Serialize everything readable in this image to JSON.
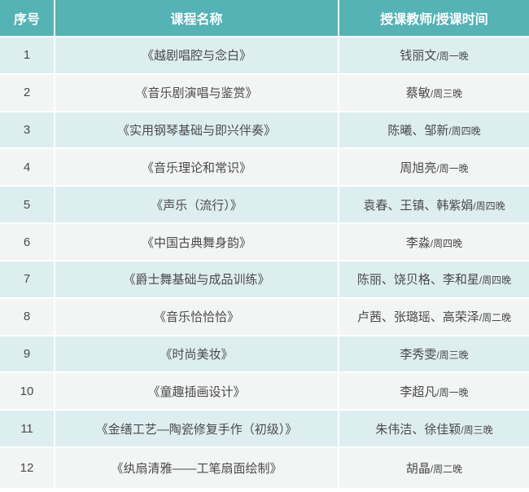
{
  "table": {
    "headers": [
      "序号",
      "课程名称",
      "授课教师/授课时间"
    ],
    "rows": [
      {
        "no": "1",
        "course": "《越剧唱腔与念白》",
        "teachers": "钱丽文",
        "time": "周一晚"
      },
      {
        "no": "2",
        "course": "《音乐剧演唱与鉴赏》",
        "teachers": "蔡敏",
        "time": "周三晚"
      },
      {
        "no": "3",
        "course": "《实用钢琴基础与即兴伴奏》",
        "teachers": "陈曦、邹新",
        "time": "周四晚"
      },
      {
        "no": "4",
        "course": "《音乐理论和常识》",
        "teachers": "周旭亮",
        "time": "周一晚"
      },
      {
        "no": "5",
        "course": "《声乐（流行）》",
        "teachers": "袁春、王镇、韩紫娟",
        "time": "周四晚"
      },
      {
        "no": "6",
        "course": "《中国古典舞身韵》",
        "teachers": "李淼",
        "time": "周四晚"
      },
      {
        "no": "7",
        "course": "《爵士舞基础与成品训练》",
        "teachers": "陈丽、饶贝格、李和星",
        "time": "周四晚"
      },
      {
        "no": "8",
        "course": "《音乐恰恰恰》",
        "teachers": "卢茜、张璐瑶、高荣泽",
        "time": "周二晚"
      },
      {
        "no": "9",
        "course": "《时尚美妆》",
        "teachers": "李秀雯",
        "time": "周三晚"
      },
      {
        "no": "10",
        "course": "《童趣插画设计》",
        "teachers": "李超凡",
        "time": "周一晚"
      },
      {
        "no": "11",
        "course": "《金缮工艺—陶瓷修复手作（初级）》",
        "teachers": "朱伟洁、徐佳颖",
        "time": "周三晚"
      },
      {
        "no": "12",
        "course": "《纨扇清雅——工笔扇面绘制》",
        "teachers": "胡晶",
        "time": "周二晚"
      }
    ],
    "time_separator": "/"
  },
  "colors": {
    "header_bg": "#55b2b5",
    "header_text": "#ffffff",
    "row_odd_bg": "#ddeef1",
    "row_even_bg": "#f3f4f4",
    "body_text": "#4a4a4a"
  }
}
